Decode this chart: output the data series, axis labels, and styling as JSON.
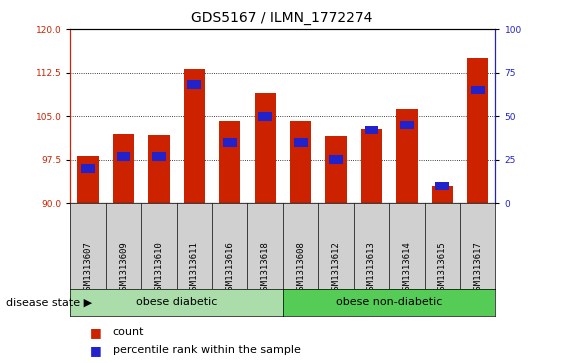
{
  "title": "GDS5167 / ILMN_1772274",
  "samples": [
    "GSM1313607",
    "GSM1313609",
    "GSM1313610",
    "GSM1313611",
    "GSM1313616",
    "GSM1313618",
    "GSM1313608",
    "GSM1313612",
    "GSM1313613",
    "GSM1313614",
    "GSM1313615",
    "GSM1313617"
  ],
  "counts": [
    98.2,
    102.0,
    101.8,
    113.2,
    104.2,
    109.0,
    104.2,
    101.6,
    102.8,
    106.2,
    93.0,
    115.0
  ],
  "percentiles": [
    20,
    27,
    27,
    68,
    35,
    50,
    35,
    25,
    42,
    45,
    10,
    65
  ],
  "y_min": 90,
  "y_max": 120,
  "y_ticks_left": [
    90,
    97.5,
    105,
    112.5,
    120
  ],
  "y_ticks_right": [
    0,
    25,
    50,
    75,
    100
  ],
  "bar_color": "#CC2200",
  "blue_color": "#2222CC",
  "group1_label": "obese diabetic",
  "group2_label": "obese non-diabetic",
  "group1_count": 6,
  "group2_count": 6,
  "group1_color": "#aaddaa",
  "group2_color": "#55cc55",
  "disease_state_label": "disease state",
  "legend_count": "count",
  "legend_percentile": "percentile rank within the sample",
  "title_fontsize": 10,
  "tick_label_fontsize": 6.5,
  "sample_label_fontsize": 6.5,
  "legend_fontsize": 8,
  "disease_fontsize": 8,
  "xlabel_box_color": "#d0d0d0"
}
